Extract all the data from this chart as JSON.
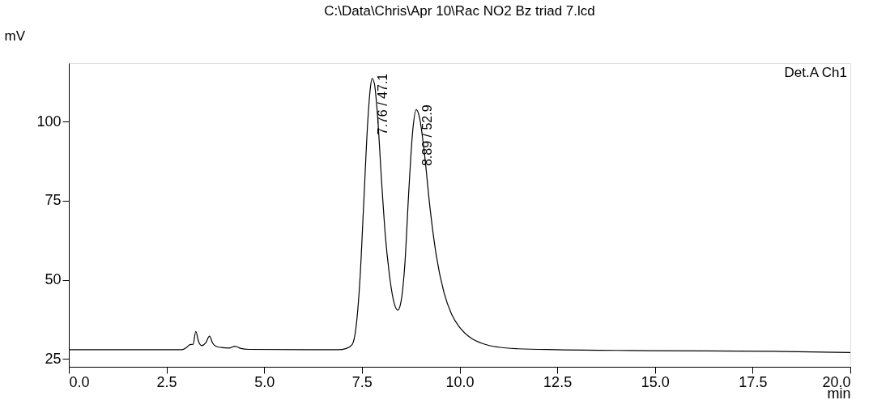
{
  "chart_data": {
    "type": "line",
    "title": "C:\\Data\\Chris\\Apr 10\\Rac NO2 Bz triad 7.lcd",
    "xlabel": "min",
    "ylabel": "mV",
    "x": [
      0,
      2.9,
      3.0,
      3.1,
      3.18,
      3.25,
      3.32,
      3.4,
      3.5,
      3.6,
      3.68,
      3.78,
      3.9,
      4.1,
      4.25,
      4.4,
      4.6,
      6.9,
      7.1,
      7.25,
      7.35,
      7.45,
      7.55,
      7.65,
      7.72,
      7.76,
      7.82,
      7.9,
      8.0,
      8.1,
      8.2,
      8.3,
      8.42,
      8.5,
      8.6,
      8.7,
      8.8,
      8.89,
      8.98,
      9.1,
      9.25,
      9.4,
      9.6,
      9.8,
      10.0,
      10.3,
      10.6,
      11.0,
      11.5,
      12.5,
      15,
      18,
      20
    ],
    "series": [
      {
        "color": "#000000",
        "values": [
          27.9,
          27.9,
          28.5,
          29.5,
          29.6,
          33.7,
          30.5,
          29.2,
          30.0,
          32.2,
          30.0,
          28.9,
          28.6,
          28.4,
          29.0,
          28.3,
          28.0,
          27.9,
          28.3,
          29.5,
          35,
          50,
          75,
          100,
          111,
          113.7,
          112,
          102,
          82,
          64,
          52,
          44,
          40.4,
          43,
          55,
          78,
          97,
          103.8,
          101,
          90,
          72,
          58,
          46,
          39,
          35,
          31.5,
          29.8,
          28.7,
          28.2,
          27.9,
          27.6,
          27.4,
          27.0
        ]
      }
    ],
    "xlim": [
      0,
      20
    ],
    "ylim": [
      22.5,
      118.5
    ],
    "xticks": [
      {
        "value": 0,
        "label": "0.0"
      },
      2.5,
      {
        "value": 5,
        "label": "5.0"
      },
      7.5,
      {
        "value": 10,
        "label": "10.0"
      },
      12.5,
      {
        "value": 15,
        "label": "15.0"
      },
      17.5,
      {
        "value": 20,
        "label": "20.0"
      }
    ],
    "yticks": [
      25,
      50,
      75,
      100
    ],
    "grid": false,
    "marker": "none",
    "line_style": "solid",
    "annotations": [
      "Det.A Ch1",
      {
        "text": "7.76 / 47.1",
        "x": 7.76,
        "y": 113.7
      },
      {
        "text": "8.89 / 52.9",
        "x": 8.89,
        "y": 103.8
      }
    ]
  }
}
